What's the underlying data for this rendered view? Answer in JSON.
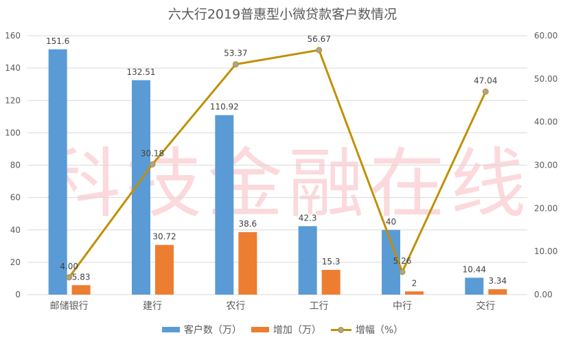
{
  "chart_data": {
    "type": "bar+line",
    "title": "六大行2019普惠型小微贷款客户数情况",
    "categories": [
      "邮储银行",
      "建行",
      "农行",
      "工行",
      "中行",
      "交行"
    ],
    "series": [
      {
        "name": "客户数（万）",
        "type": "bar",
        "axis": "left",
        "color": "#5b9bd5",
        "values": [
          151.6,
          132.51,
          110.92,
          42.3,
          40,
          10.44
        ],
        "labels": [
          "151.6",
          "132.51",
          "110.92",
          "42.3",
          "40",
          "10.44"
        ]
      },
      {
        "name": "增加（万）",
        "type": "bar",
        "axis": "left",
        "color": "#ed7d31",
        "values": [
          5.83,
          30.72,
          38.6,
          15.3,
          2,
          3.34
        ],
        "labels": [
          "5.83",
          "30.72",
          "38.6",
          "15.3",
          "2",
          "3.34"
        ]
      },
      {
        "name": "增幅（%）",
        "type": "line",
        "axis": "right",
        "color": "#bf9000",
        "marker_color": "#a5a5a5",
        "values": [
          4.0,
          30.18,
          53.37,
          56.67,
          5.26,
          47.04
        ],
        "labels": [
          "4.00",
          "30.18",
          "53.37",
          "56.67",
          "5.26",
          "47.04"
        ]
      }
    ],
    "left_axis": {
      "range": [
        0,
        160
      ],
      "ticks": [
        "0",
        "20",
        "40",
        "60",
        "80",
        "100",
        "120",
        "140",
        "160"
      ]
    },
    "right_axis": {
      "range": [
        0,
        60
      ],
      "ticks": [
        "0.00",
        "10.00",
        "20.00",
        "30.00",
        "40.00",
        "50.00",
        "60.00"
      ]
    },
    "grid": true,
    "legend": "bottom"
  },
  "watermark": "科技金融在线"
}
